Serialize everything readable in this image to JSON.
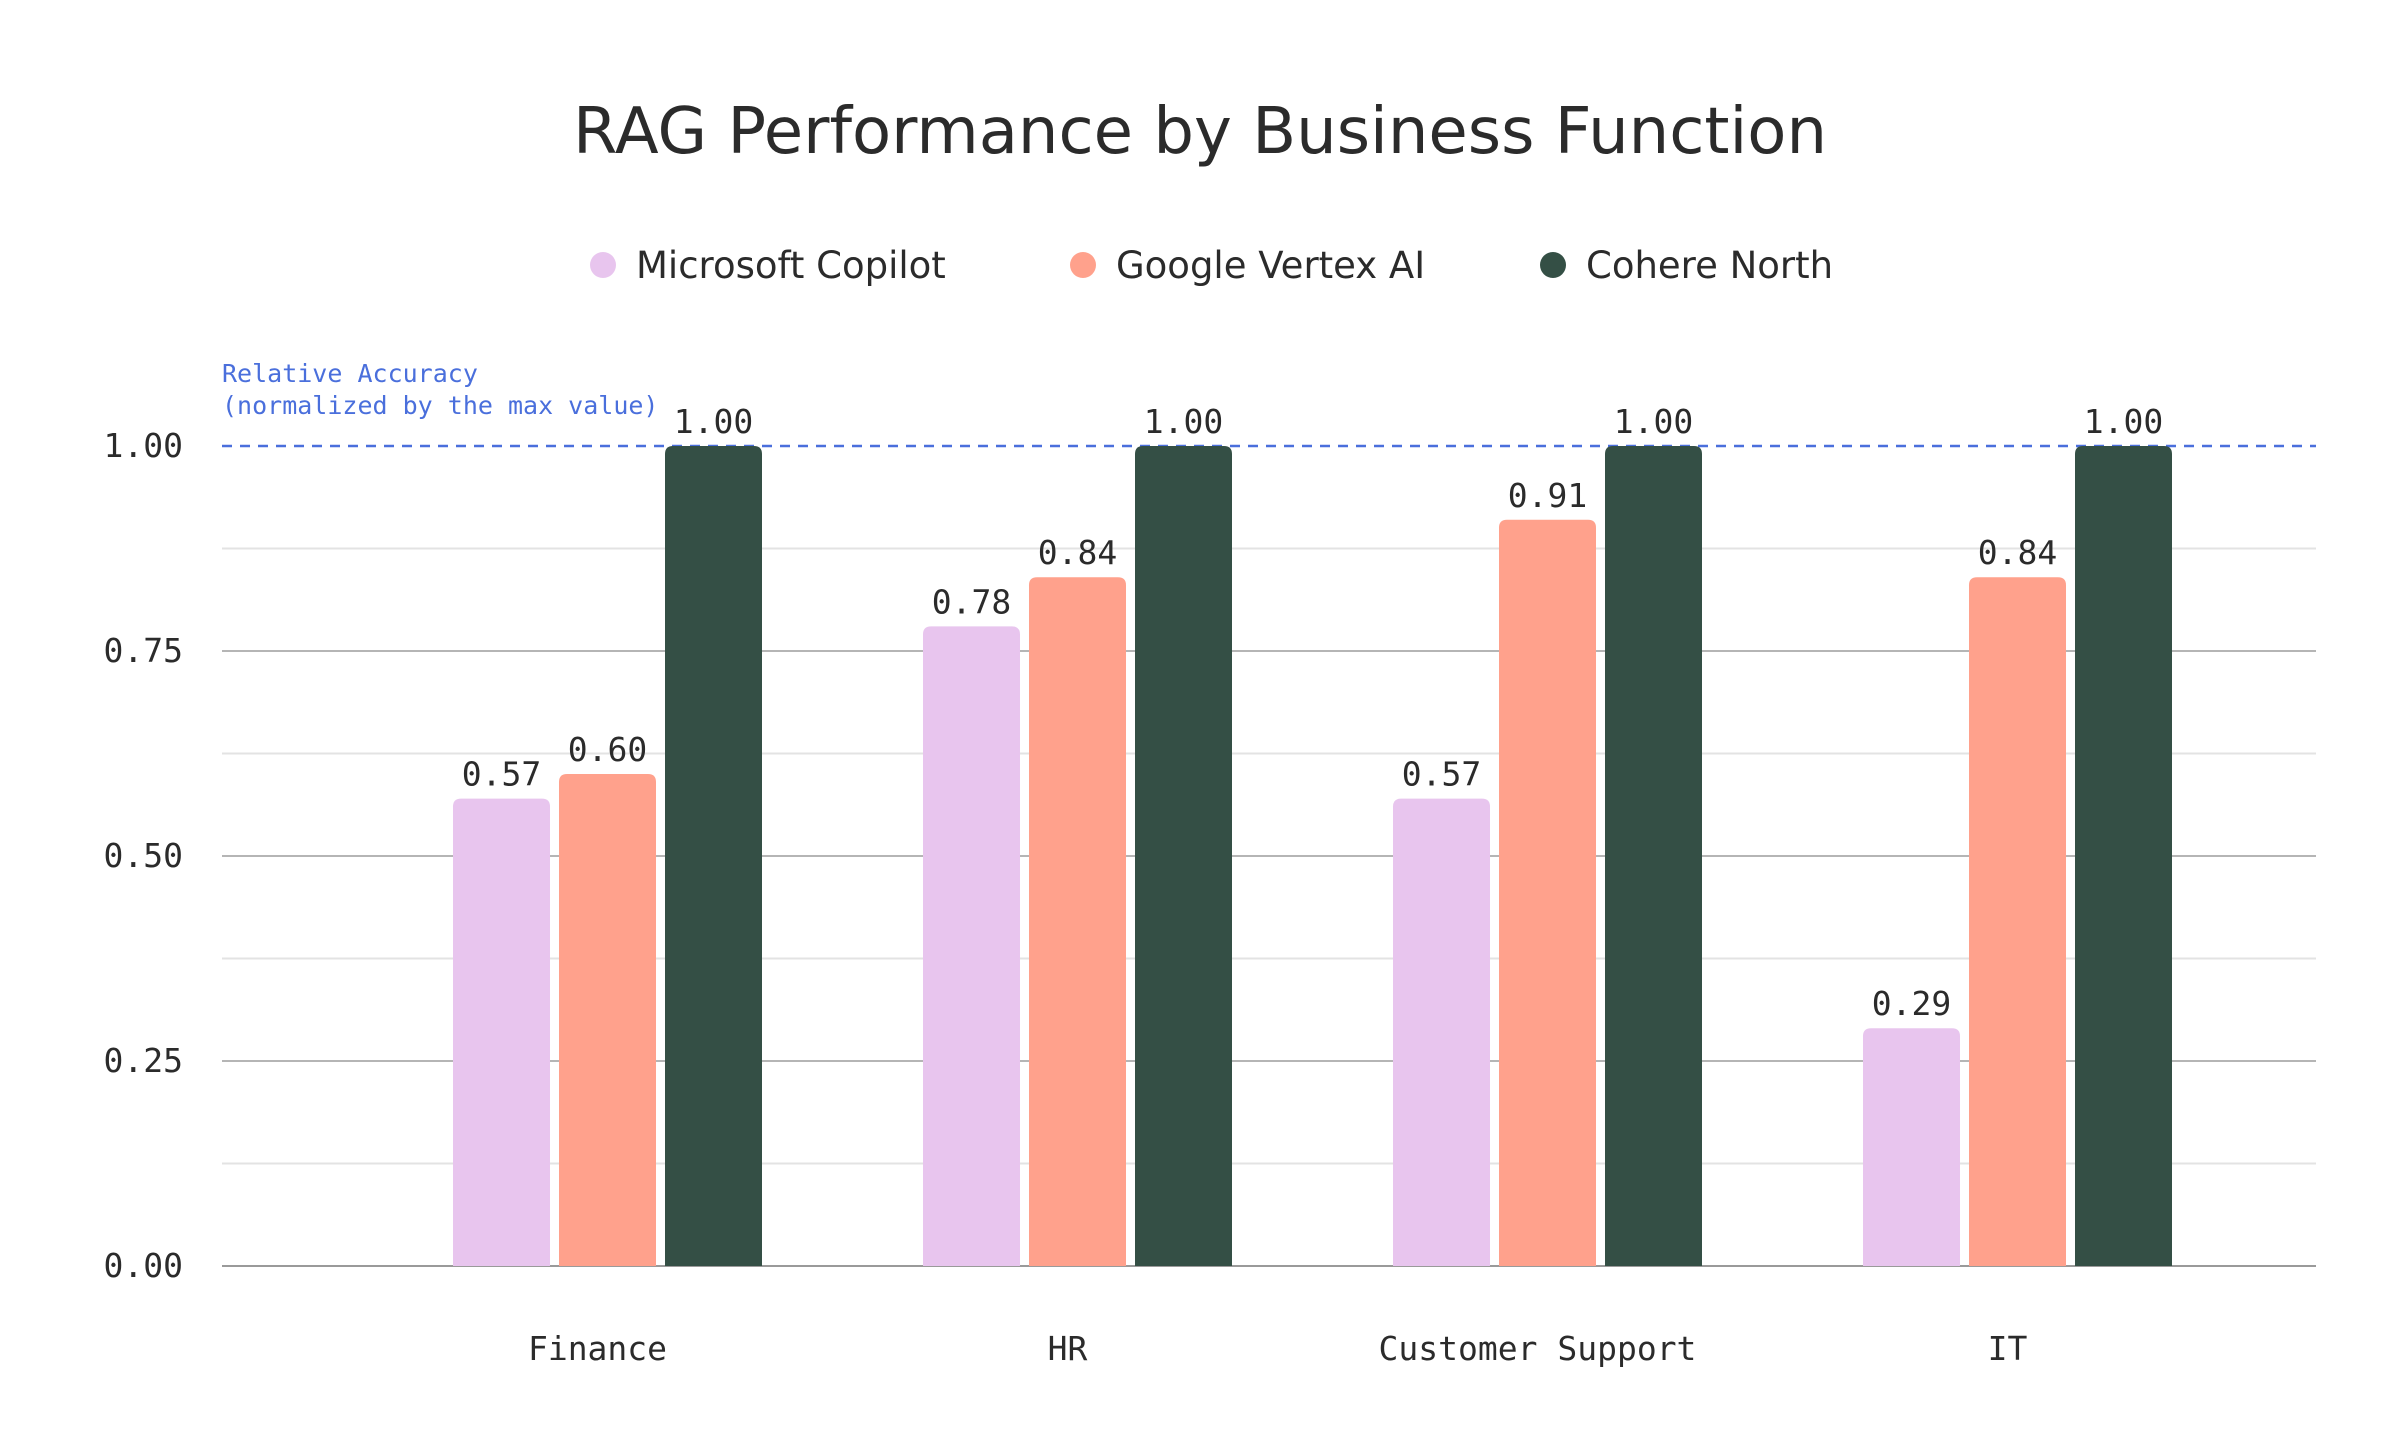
{
  "chart_data": {
    "type": "bar",
    "title": "RAG Performance by Business Function",
    "categories": [
      "Finance",
      "HR",
      "Customer Support",
      "IT"
    ],
    "series": [
      {
        "name": "Microsoft Copilot",
        "color": "#e8c5ee",
        "values": [
          0.57,
          0.78,
          0.57,
          0.29
        ],
        "labels": [
          "0.57",
          "0.78",
          "0.57",
          "0.29"
        ]
      },
      {
        "name": "Google Vertex AI",
        "color": "#ffa18c",
        "values": [
          0.6,
          0.84,
          0.91,
          0.84
        ],
        "labels": [
          "0.60",
          "0.84",
          "0.91",
          "0.84"
        ]
      },
      {
        "name": "Cohere North",
        "color": "#344f45",
        "values": [
          1.0,
          1.0,
          1.0,
          1.0
        ],
        "labels": [
          "1.00",
          "1.00",
          "1.00",
          "1.00"
        ]
      }
    ],
    "ylim": [
      0,
      1
    ],
    "yticks": [
      0,
      0.25,
      0.5,
      0.75,
      1.0
    ],
    "ytick_labels": [
      "0.00",
      "0.25",
      "0.50",
      "0.75",
      "1.00"
    ],
    "reference_line": {
      "value": 1.0,
      "color": "#4a6fdc",
      "style": "dashed"
    },
    "annotation": {
      "line1": "Relative Accuracy",
      "line2": "(normalized by the max value)",
      "color": "#4a6fdc"
    },
    "grid": true,
    "legend_position": "top-center"
  }
}
